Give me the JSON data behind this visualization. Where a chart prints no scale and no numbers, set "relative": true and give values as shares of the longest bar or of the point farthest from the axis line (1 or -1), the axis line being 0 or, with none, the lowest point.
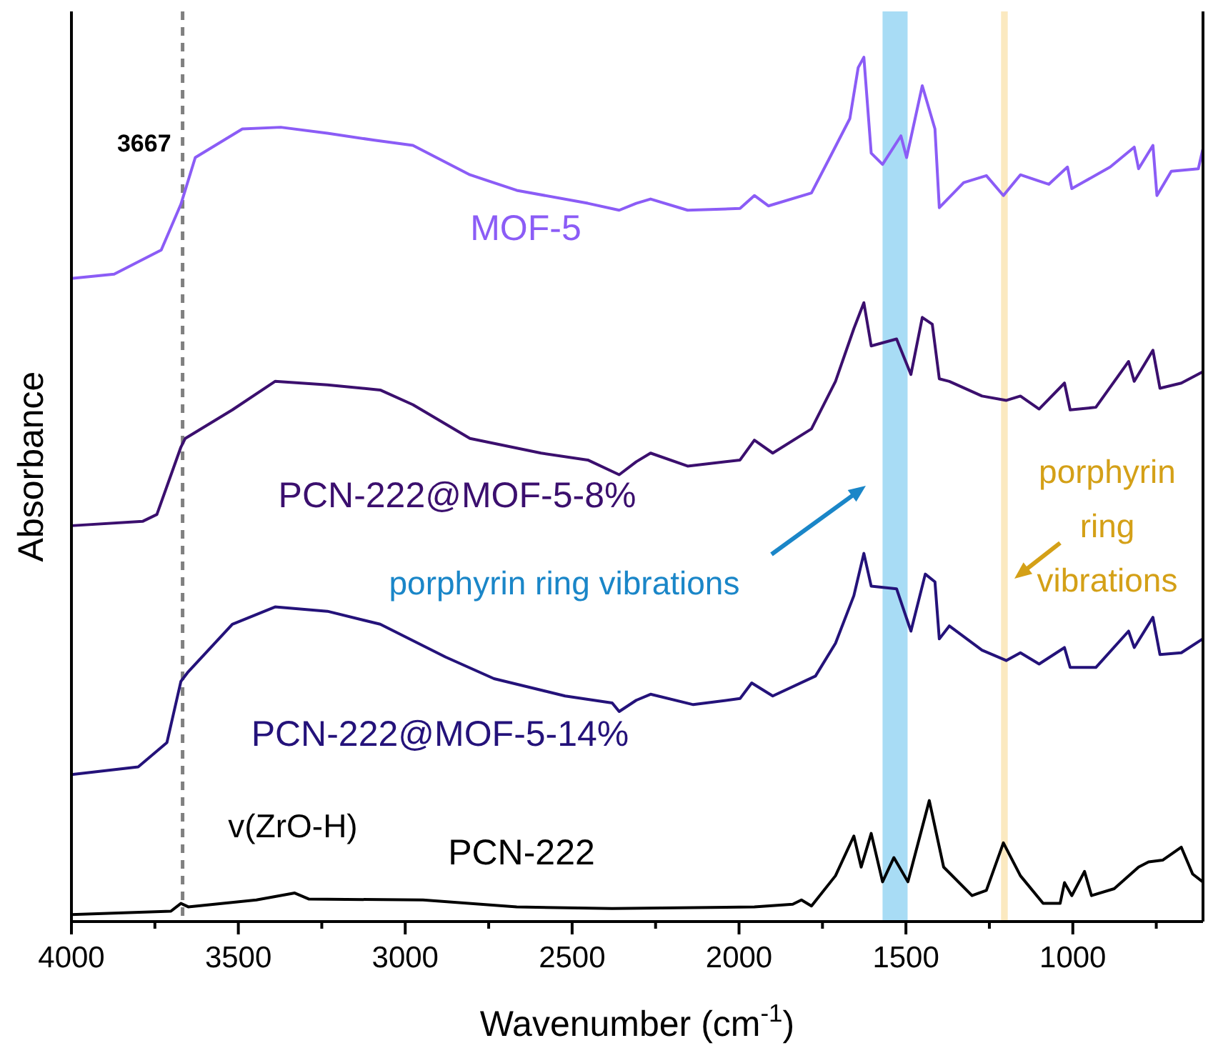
{
  "chart_data": {
    "type": "line",
    "relative": true,
    "xlabel": "Wavenumber (cm$^{-1}$)",
    "ylabel": "Absorbance",
    "xlim": [
      4000,
      610
    ],
    "xticks": [
      4000,
      {
        "value": 3750,
        "label": null
      },
      3500,
      {
        "value": 3250,
        "label": null
      },
      3000,
      {
        "value": 2750,
        "label": null
      },
      2500,
      {
        "value": 2250,
        "label": null
      },
      2000,
      {
        "value": 1750,
        "label": null
      },
      1500,
      {
        "value": 1250,
        "label": null
      },
      1000,
      {
        "value": 750,
        "label": null
      }
    ],
    "tick_labels": "x",
    "line_style": "solid",
    "series": [
      {
        "name": "MOF-5",
        "color": "#8b5cf6",
        "x": [
          4000,
          3872,
          3731,
          3672,
          3629,
          3488,
          3373,
          3233,
          3092,
          2977,
          2806,
          2666,
          2453,
          2359,
          2308,
          2265,
          2154,
          1997,
          1954,
          1912,
          1783,
          1728,
          1668,
          1643,
          1626,
          1604,
          1570,
          1515,
          1498,
          1451,
          1413,
          1400,
          1327,
          1259,
          1208,
          1157,
          1072,
          1016,
          1003,
          888,
          816,
          803,
          760,
          748,
          705,
          624,
          611
        ],
        "values": [
          0.744,
          0.749,
          0.777,
          0.83,
          0.884,
          0.917,
          0.919,
          0.912,
          0.904,
          0.898,
          0.864,
          0.846,
          0.831,
          0.823,
          0.831,
          0.836,
          0.823,
          0.825,
          0.84,
          0.828,
          0.843,
          0.884,
          0.929,
          0.988,
          1,
          0.889,
          0.876,
          0.909,
          0.884,
          0.967,
          0.917,
          0.826,
          0.855,
          0.863,
          0.84,
          0.864,
          0.853,
          0.873,
          0.848,
          0.873,
          0.896,
          0.871,
          0.898,
          0.84,
          0.868,
          0.871,
          0.893
        ]
      },
      {
        "name": "PCN-222@MOF-5-8%",
        "color": "#3b0f6e",
        "x": [
          4000,
          3787,
          3744,
          3672,
          3659,
          3518,
          3390,
          3233,
          3075,
          2977,
          2806,
          2593,
          2453,
          2359,
          2308,
          2265,
          2154,
          1997,
          1954,
          1899,
          1783,
          1711,
          1656,
          1626,
          1604,
          1528,
          1485,
          1451,
          1421,
          1400,
          1370,
          1272,
          1199,
          1157,
          1101,
          1025,
          1008,
          931,
          833,
          816,
          760,
          739,
          675,
          611
        ],
        "values": [
          0.458,
          0.463,
          0.471,
          0.549,
          0.559,
          0.592,
          0.625,
          0.621,
          0.615,
          0.598,
          0.559,
          0.542,
          0.534,
          0.517,
          0.532,
          0.542,
          0.527,
          0.534,
          0.557,
          0.542,
          0.57,
          0.625,
          0.686,
          0.716,
          0.666,
          0.674,
          0.633,
          0.699,
          0.691,
          0.628,
          0.625,
          0.608,
          0.603,
          0.608,
          0.593,
          0.623,
          0.592,
          0.595,
          0.648,
          0.625,
          0.661,
          0.617,
          0.623,
          0.636
        ]
      },
      {
        "name": "PCN-222@MOF-5-14%",
        "color": "#24127a",
        "x": [
          4000,
          3800,
          3714,
          3672,
          3650,
          3518,
          3390,
          3233,
          3075,
          2879,
          2734,
          2521,
          2380,
          2359,
          2308,
          2265,
          2137,
          1997,
          1962,
          1899,
          1771,
          1711,
          1656,
          1626,
          1604,
          1528,
          1485,
          1442,
          1413,
          1400,
          1370,
          1272,
          1199,
          1157,
          1101,
          1025,
          1008,
          931,
          833,
          816,
          760,
          739,
          675,
          611
        ],
        "values": [
          0.17,
          0.179,
          0.207,
          0.278,
          0.289,
          0.344,
          0.364,
          0.359,
          0.344,
          0.306,
          0.281,
          0.261,
          0.253,
          0.243,
          0.256,
          0.263,
          0.251,
          0.258,
          0.276,
          0.261,
          0.284,
          0.322,
          0.377,
          0.426,
          0.388,
          0.385,
          0.336,
          0.402,
          0.393,
          0.327,
          0.342,
          0.314,
          0.302,
          0.311,
          0.298,
          0.317,
          0.294,
          0.294,
          0.336,
          0.317,
          0.352,
          0.309,
          0.311,
          0.327
        ]
      },
      {
        "name": "PCN-222",
        "color": "#000000",
        "x": [
          4000,
          3702,
          3672,
          3650,
          3446,
          3331,
          3288,
          2947,
          2666,
          2380,
          1954,
          1839,
          1813,
          1783,
          1711,
          1656,
          1634,
          1604,
          1570,
          1536,
          1494,
          1430,
          1387,
          1302,
          1259,
          1208,
          1157,
          1089,
          1038,
          1025,
          1003,
          965,
          944,
          876,
          803,
          773,
          731,
          675,
          641,
          611
        ],
        "values": [
          0.008,
          0.012,
          0.021,
          0.017,
          0.025,
          0.033,
          0.026,
          0.025,
          0.017,
          0.015,
          0.017,
          0.02,
          0.025,
          0.018,
          0.053,
          0.099,
          0.063,
          0.102,
          0.046,
          0.074,
          0.046,
          0.14,
          0.063,
          0.03,
          0.036,
          0.091,
          0.053,
          0.021,
          0.021,
          0.045,
          0.03,
          0.058,
          0.03,
          0.038,
          0.063,
          0.069,
          0.071,
          0.086,
          0.055,
          0.046
        ]
      }
    ],
    "ref_lines": [
      {
        "axis": "x",
        "value": 3667,
        "label": "3667",
        "color": "#808080",
        "line_style": "dashed"
      }
    ],
    "bands": [
      {
        "axis": "x",
        "from": 1570,
        "to": 1495,
        "color": "#a8dcf5"
      },
      {
        "axis": "x",
        "from": 1215,
        "to": 1195,
        "label": "porphyrin ring vibrations",
        "color": "#fbe9c0"
      }
    ],
    "annotations": [
      "v(ZrO-H)",
      "porphyrin ring vibrations"
    ]
  }
}
